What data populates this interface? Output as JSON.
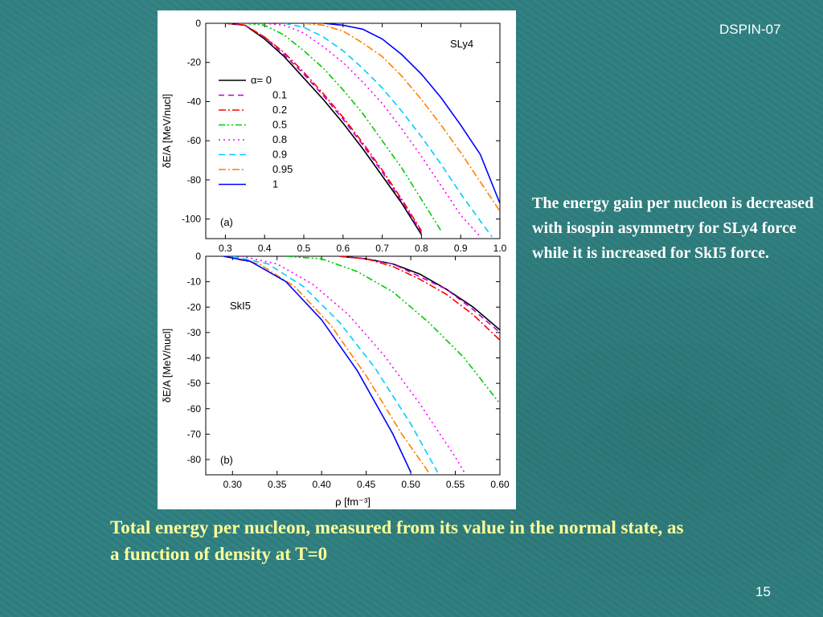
{
  "slide": {
    "header_tag": "DSPIN-07",
    "page_number": "15",
    "side_note": "The energy gain per nucleon is decreased  with isospin asymmetry for SLy4 force while it is increased for SkI5 force.",
    "caption": "Total energy per nucleon, measured from its value in the normal state, as a function of density at T=0"
  },
  "chart_data": [
    {
      "type": "line",
      "panel_label": "(a)",
      "force_label": "SLy4",
      "ylabel": "δE/A [MeV/nucl]",
      "xlim": [
        0.25,
        1.0
      ],
      "ylim": [
        -110,
        0
      ],
      "xticks": [
        "0.3",
        "0.4",
        "0.5",
        "0.6",
        "0.7",
        "0.8",
        "0.9",
        "1.0"
      ],
      "yticks": [
        "0",
        "-20",
        "-40",
        "-60",
        "-80",
        "-100"
      ],
      "legend": {
        "position": "left",
        "title_symbol": "α"
      },
      "series": [
        {
          "name": "α= 0",
          "color": "#000000",
          "dash": "",
          "x": [
            0.3,
            0.35,
            0.4,
            0.45,
            0.5,
            0.55,
            0.6,
            0.65,
            0.7,
            0.75,
            0.8
          ],
          "y": [
            0,
            -1,
            -8,
            -17,
            -28,
            -39,
            -51,
            -64,
            -78,
            -92,
            -108
          ]
        },
        {
          "name": "0.1",
          "color": "#b800e6",
          "dash": "7,5",
          "x": [
            0.3,
            0.35,
            0.4,
            0.45,
            0.5,
            0.55,
            0.6,
            0.65,
            0.7,
            0.75,
            0.8
          ],
          "y": [
            0,
            -1,
            -7,
            -16,
            -26,
            -37,
            -49,
            -62,
            -76,
            -91,
            -107
          ]
        },
        {
          "name": "0.2",
          "color": "#ff0000",
          "dash": "9,3,2,3",
          "x": [
            0.3,
            0.35,
            0.4,
            0.45,
            0.5,
            0.55,
            0.6,
            0.65,
            0.7,
            0.75,
            0.8
          ],
          "y": [
            0,
            -1,
            -7,
            -15,
            -25,
            -36,
            -48,
            -61,
            -75,
            -90,
            -106
          ]
        },
        {
          "name": "0.5",
          "color": "#00cc00",
          "dash": "8,3,2,3,2,3",
          "x": [
            0.35,
            0.4,
            0.45,
            0.5,
            0.55,
            0.6,
            0.65,
            0.7,
            0.75,
            0.8,
            0.85
          ],
          "y": [
            0,
            -1,
            -6,
            -14,
            -23,
            -34,
            -46,
            -60,
            -74,
            -90,
            -106
          ]
        },
        {
          "name": "0.8",
          "color": "#ff00ff",
          "dash": "2,4",
          "x": [
            0.4,
            0.45,
            0.5,
            0.55,
            0.6,
            0.65,
            0.7,
            0.75,
            0.8,
            0.85,
            0.9,
            0.95
          ],
          "y": [
            0,
            -1,
            -5,
            -12,
            -20,
            -30,
            -41,
            -54,
            -68,
            -83,
            -98,
            -109
          ]
        },
        {
          "name": "0.9",
          "color": "#00ccff",
          "dash": "8,5",
          "x": [
            0.45,
            0.5,
            0.55,
            0.6,
            0.65,
            0.7,
            0.75,
            0.8,
            0.85,
            0.9,
            0.95,
            0.98
          ],
          "y": [
            0,
            -2,
            -7,
            -14,
            -23,
            -33,
            -45,
            -58,
            -72,
            -87,
            -101,
            -109
          ]
        },
        {
          "name": "0.95",
          "color": "#ff8000",
          "dash": "9,3,2,3",
          "x": [
            0.5,
            0.55,
            0.6,
            0.65,
            0.7,
            0.75,
            0.8,
            0.85,
            0.9,
            0.95,
            1.0
          ],
          "y": [
            0,
            -1,
            -4,
            -10,
            -17,
            -27,
            -39,
            -52,
            -66,
            -81,
            -96
          ]
        },
        {
          "name": "1",
          "color": "#0000ff",
          "dash": "",
          "x": [
            0.55,
            0.6,
            0.65,
            0.7,
            0.75,
            0.8,
            0.85,
            0.9,
            0.95,
            1.0
          ],
          "y": [
            0,
            -1,
            -3,
            -8,
            -16,
            -26,
            -38,
            -52,
            -67,
            -92
          ]
        }
      ]
    },
    {
      "type": "line",
      "panel_label": "(b)",
      "force_label": "SkI5",
      "xlabel": "ρ [fm⁻³]",
      "ylabel": "δE/A [MeV/nucl]",
      "xlim": [
        0.27,
        0.6
      ],
      "ylim": [
        -86,
        0
      ],
      "xticks": [
        "0.30",
        "0.35",
        "0.40",
        "0.45",
        "0.50",
        "0.55",
        "0.60"
      ],
      "yticks": [
        "0",
        "-10",
        "-20",
        "-30",
        "-40",
        "-50",
        "-60",
        "-70",
        "-80"
      ],
      "series": [
        {
          "name": "α= 0",
          "color": "#000000",
          "dash": "",
          "x": [
            0.42,
            0.45,
            0.48,
            0.51,
            0.54,
            0.57,
            0.6
          ],
          "y": [
            0,
            -1,
            -3,
            -7,
            -13,
            -20,
            -29
          ]
        },
        {
          "name": "0.1",
          "color": "#b800e6",
          "dash": "7,5",
          "x": [
            0.42,
            0.45,
            0.48,
            0.51,
            0.54,
            0.57,
            0.6
          ],
          "y": [
            0,
            -1,
            -3,
            -8,
            -13,
            -21,
            -30
          ]
        },
        {
          "name": "0.2",
          "color": "#ff0000",
          "dash": "9,3,2,3",
          "x": [
            0.42,
            0.45,
            0.48,
            0.51,
            0.54,
            0.57,
            0.6
          ],
          "y": [
            0,
            -1,
            -4,
            -9,
            -15,
            -23,
            -33
          ]
        },
        {
          "name": "0.5",
          "color": "#00cc00",
          "dash": "8,3,2,3,2,3",
          "x": [
            0.36,
            0.4,
            0.44,
            0.48,
            0.52,
            0.56,
            0.6
          ],
          "y": [
            0,
            -1,
            -6,
            -14,
            -26,
            -40,
            -58
          ]
        },
        {
          "name": "0.8",
          "color": "#ff00ff",
          "dash": "2,4",
          "x": [
            0.31,
            0.35,
            0.39,
            0.43,
            0.47,
            0.51,
            0.55,
            0.56
          ],
          "y": [
            0,
            -3,
            -11,
            -23,
            -39,
            -58,
            -79,
            -85
          ]
        },
        {
          "name": "0.9",
          "color": "#00ccff",
          "dash": "8,5",
          "x": [
            0.3,
            0.34,
            0.38,
            0.42,
            0.46,
            0.5,
            0.53
          ],
          "y": [
            0,
            -3,
            -12,
            -26,
            -44,
            -66,
            -85
          ]
        },
        {
          "name": "0.95",
          "color": "#ff8000",
          "dash": "9,3,2,3",
          "x": [
            0.29,
            0.33,
            0.37,
            0.41,
            0.45,
            0.49,
            0.52
          ],
          "y": [
            0,
            -3,
            -12,
            -27,
            -47,
            -70,
            -85
          ]
        },
        {
          "name": "1",
          "color": "#0000ff",
          "dash": "",
          "x": [
            0.29,
            0.32,
            0.36,
            0.4,
            0.44,
            0.48,
            0.5
          ],
          "y": [
            0,
            -2,
            -10,
            -25,
            -45,
            -70,
            -85
          ]
        }
      ]
    }
  ]
}
